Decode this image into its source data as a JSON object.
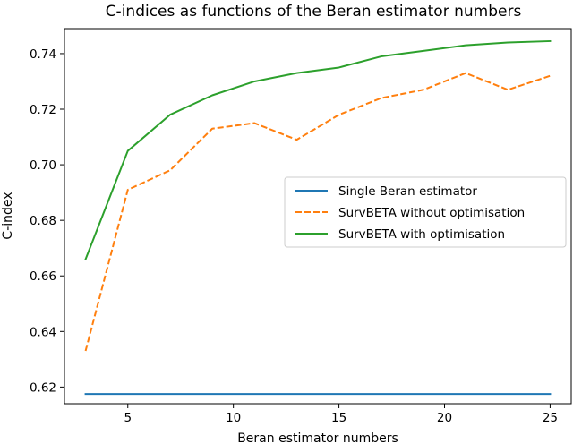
{
  "chart_data": {
    "type": "line",
    "title": "C-indices as functions of the Beran estimator numbers",
    "xlabel": "Beran estimator numbers",
    "ylabel": "C-index",
    "xlim": [
      2,
      26
    ],
    "ylim": [
      0.614,
      0.749
    ],
    "xticks": [
      5,
      10,
      15,
      20,
      25
    ],
    "yticks": [
      0.62,
      0.64,
      0.66,
      0.68,
      0.7,
      0.72,
      0.74
    ],
    "grid": false,
    "legend_position": "center-right",
    "x": [
      3,
      5,
      7,
      9,
      11,
      13,
      15,
      17,
      19,
      21,
      23,
      25
    ],
    "series": [
      {
        "name": "Single Beran estimator",
        "color": "#1f77b4",
        "style": "solid",
        "values": [
          0.6175,
          0.6175,
          0.6175,
          0.6175,
          0.6175,
          0.6175,
          0.6175,
          0.6175,
          0.6175,
          0.6175,
          0.6175,
          0.6175
        ]
      },
      {
        "name": "SurvBETA without optimisation",
        "color": "#ff7f0e",
        "style": "dashed",
        "values": [
          0.633,
          0.691,
          0.698,
          0.713,
          0.715,
          0.709,
          0.718,
          0.724,
          0.727,
          0.733,
          0.727,
          0.732
        ]
      },
      {
        "name": "SurvBETA with optimisation",
        "color": "#2ca02c",
        "style": "solid",
        "values": [
          0.666,
          0.705,
          0.718,
          0.725,
          0.73,
          0.733,
          0.735,
          0.739,
          0.741,
          0.743,
          0.744,
          0.7445
        ]
      }
    ]
  }
}
